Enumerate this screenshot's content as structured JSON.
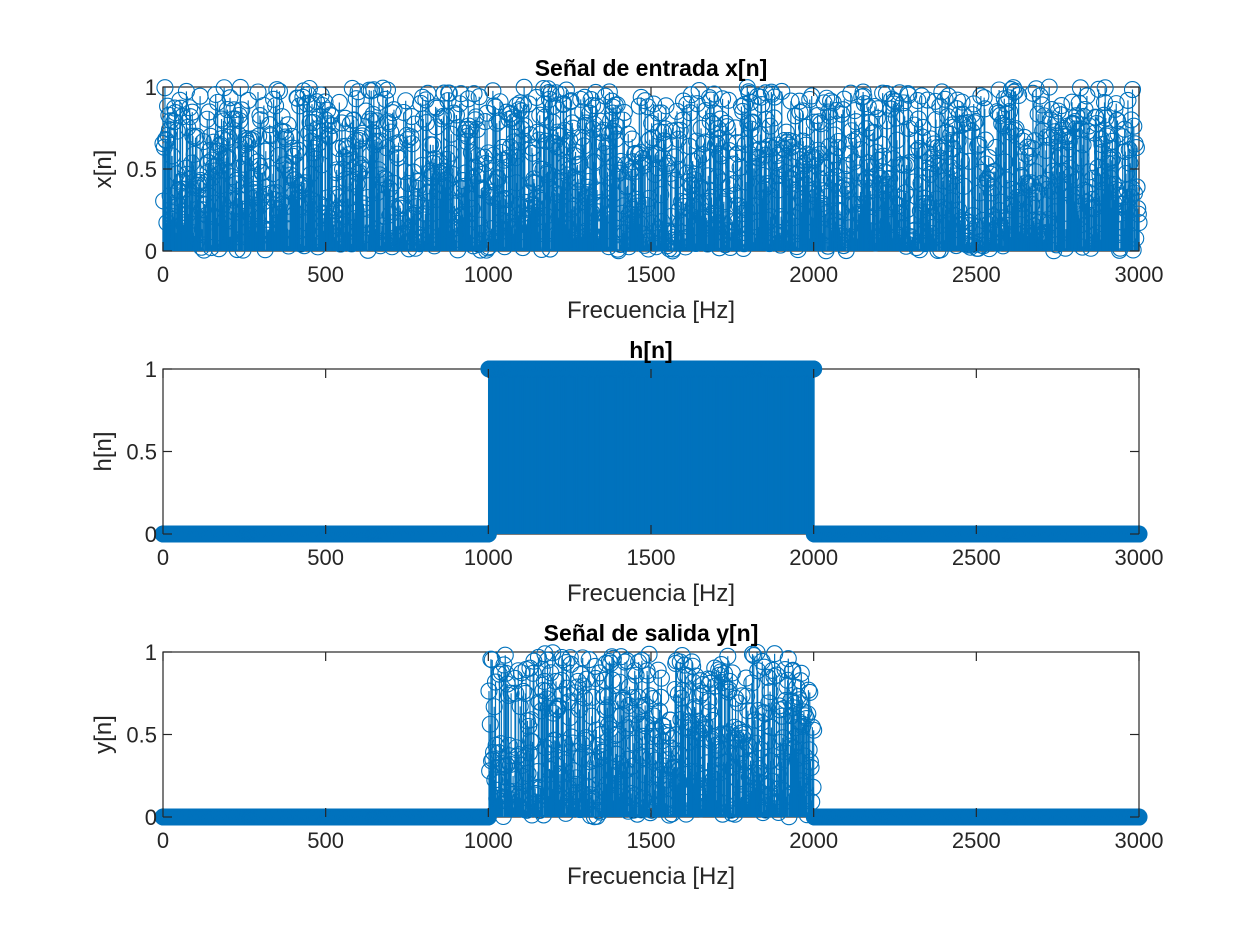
{
  "figure": {
    "series_color": "#0072BD",
    "marker": "circle"
  },
  "chart_data": [
    {
      "type": "scatter",
      "style": "stem",
      "title": "Señal de entrada x[n]",
      "xlabel": "Frecuencia [Hz]",
      "ylabel": "x[n]",
      "xlim": [
        0,
        3000
      ],
      "ylim": [
        0,
        1
      ],
      "xticks": [
        "0",
        "500",
        "1000",
        "1500",
        "2000",
        "2500",
        "3000"
      ],
      "yticks": [
        "0",
        "0.5",
        "1"
      ],
      "grid": false,
      "description": "uniform random values in [0,1] for every sample across 0–3000 Hz",
      "series": [
        {
          "value_range": [
            0,
            1
          ],
          "x_range": [
            0,
            3000
          ],
          "distribution": "uniform-random",
          "samples": 3001
        }
      ]
    },
    {
      "type": "scatter",
      "style": "stem",
      "title": "h[n]",
      "xlabel": "Frecuencia [Hz]",
      "ylabel": "h[n]",
      "xlim": [
        0,
        3000
      ],
      "ylim": [
        0,
        1
      ],
      "xticks": [
        "0",
        "500",
        "1000",
        "1500",
        "2000",
        "2500",
        "3000"
      ],
      "yticks": [
        "0",
        "0.5",
        "1"
      ],
      "grid": false,
      "series": [
        {
          "segments": [
            {
              "x_from": 0,
              "x_to": 1000,
              "value": 0
            },
            {
              "x_from": 1000,
              "x_to": 2000,
              "value": 1
            },
            {
              "x_from": 2000,
              "x_to": 3000,
              "value": 0
            }
          ]
        }
      ]
    },
    {
      "type": "scatter",
      "style": "stem",
      "title": "Señal de salida y[n]",
      "xlabel": "Frecuencia [Hz]",
      "ylabel": "y[n]",
      "xlim": [
        0,
        3000
      ],
      "ylim": [
        0,
        1
      ],
      "xticks": [
        "0",
        "500",
        "1000",
        "1500",
        "2000",
        "2500",
        "3000"
      ],
      "yticks": [
        "0",
        "0.5",
        "1"
      ],
      "grid": false,
      "series": [
        {
          "segments": [
            {
              "x_from": 0,
              "x_to": 1000,
              "value": 0
            },
            {
              "x_from": 1000,
              "x_to": 2000,
              "distribution": "uniform-random",
              "value_range": [
                0,
                1
              ]
            },
            {
              "x_from": 2000,
              "x_to": 3000,
              "value": 0
            }
          ]
        }
      ]
    }
  ]
}
